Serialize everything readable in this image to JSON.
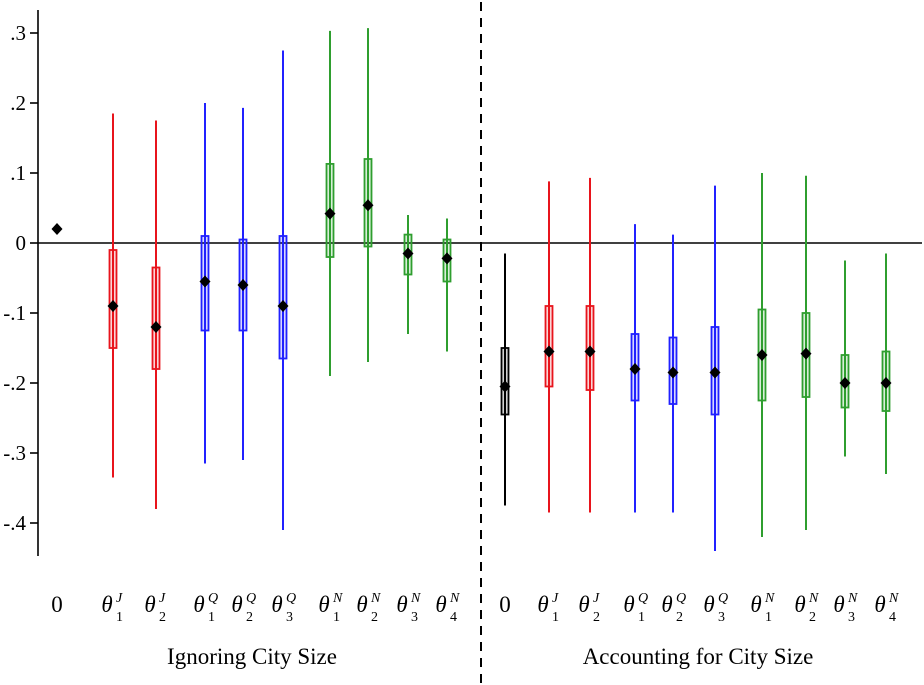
{
  "figure": {
    "background": "#ffffff",
    "divider_style": "dashed",
    "left_panel_title": "Ignoring City Size",
    "right_panel_title": "Accounting for City Size"
  },
  "chart_data": {
    "type": "scatter",
    "subtype": "coefficient-interval-plot",
    "title": "",
    "xlabel": "",
    "ylabel": "",
    "ylim": [
      -0.47,
      0.33
    ],
    "grid": false,
    "zero_line": 0,
    "yticks": {
      "labels": [
        ".3",
        ".2",
        ".1",
        "0",
        "-.1",
        "-.2",
        "-.3",
        "-.4"
      ],
      "values": [
        0.3,
        0.2,
        0.1,
        0,
        -0.1,
        -0.2,
        -0.3,
        -0.4
      ]
    },
    "colors": {
      "baseline": "#000000",
      "J": "#e8141c",
      "Q": "#2121ff",
      "N": "#2f9e2f"
    },
    "panels": [
      {
        "title": "Ignoring City Size",
        "points": [
          {
            "base": "0",
            "sub": "",
            "sup": "",
            "group": "baseline",
            "estimate": 0.02,
            "inner": null,
            "outer": null
          },
          {
            "base": "θ",
            "sub": "1",
            "sup": "J",
            "group": "J",
            "estimate": -0.09,
            "inner": [
              -0.15,
              -0.01
            ],
            "outer": [
              -0.335,
              0.185
            ]
          },
          {
            "base": "θ",
            "sub": "2",
            "sup": "J",
            "group": "J",
            "estimate": -0.12,
            "inner": [
              -0.18,
              -0.035
            ],
            "outer": [
              -0.38,
              0.175
            ]
          },
          {
            "base": "θ",
            "sub": "1",
            "sup": "Q",
            "group": "Q",
            "estimate": -0.055,
            "inner": [
              -0.125,
              0.01
            ],
            "outer": [
              -0.315,
              0.2
            ]
          },
          {
            "base": "θ",
            "sub": "2",
            "sup": "Q",
            "group": "Q",
            "estimate": -0.06,
            "inner": [
              -0.125,
              0.005
            ],
            "outer": [
              -0.31,
              0.193
            ]
          },
          {
            "base": "θ",
            "sub": "3",
            "sup": "Q",
            "group": "Q",
            "estimate": -0.09,
            "inner": [
              -0.165,
              0.01
            ],
            "outer": [
              -0.41,
              0.275
            ]
          },
          {
            "base": "θ",
            "sub": "1",
            "sup": "N",
            "group": "N",
            "estimate": 0.042,
            "inner": [
              -0.02,
              0.113
            ],
            "outer": [
              -0.19,
              0.303
            ]
          },
          {
            "base": "θ",
            "sub": "2",
            "sup": "N",
            "group": "N",
            "estimate": 0.054,
            "inner": [
              -0.005,
              0.12
            ],
            "outer": [
              -0.17,
              0.307
            ]
          },
          {
            "base": "θ",
            "sub": "3",
            "sup": "N",
            "group": "N",
            "estimate": -0.015,
            "inner": [
              -0.045,
              0.012
            ],
            "outer": [
              -0.13,
              0.04
            ]
          },
          {
            "base": "θ",
            "sub": "4",
            "sup": "N",
            "group": "N",
            "estimate": -0.022,
            "inner": [
              -0.055,
              0.005
            ],
            "outer": [
              -0.155,
              0.035
            ]
          }
        ]
      },
      {
        "title": "Accounting for City Size",
        "points": [
          {
            "base": "0",
            "sub": "",
            "sup": "",
            "group": "baseline",
            "estimate": -0.205,
            "inner": [
              -0.245,
              -0.15
            ],
            "outer": [
              -0.375,
              -0.015
            ]
          },
          {
            "base": "θ",
            "sub": "1",
            "sup": "J",
            "group": "J",
            "estimate": -0.155,
            "inner": [
              -0.205,
              -0.09
            ],
            "outer": [
              -0.385,
              0.088
            ]
          },
          {
            "base": "θ",
            "sub": "2",
            "sup": "J",
            "group": "J",
            "estimate": -0.155,
            "inner": [
              -0.21,
              -0.09
            ],
            "outer": [
              -0.385,
              0.093
            ]
          },
          {
            "base": "θ",
            "sub": "1",
            "sup": "Q",
            "group": "Q",
            "estimate": -0.18,
            "inner": [
              -0.225,
              -0.13
            ],
            "outer": [
              -0.385,
              0.027
            ]
          },
          {
            "base": "θ",
            "sub": "2",
            "sup": "Q",
            "group": "Q",
            "estimate": -0.185,
            "inner": [
              -0.23,
              -0.135
            ],
            "outer": [
              -0.385,
              0.012
            ]
          },
          {
            "base": "θ",
            "sub": "3",
            "sup": "Q",
            "group": "Q",
            "estimate": -0.185,
            "inner": [
              -0.245,
              -0.12
            ],
            "outer": [
              -0.44,
              0.082
            ]
          },
          {
            "base": "θ",
            "sub": "1",
            "sup": "N",
            "group": "N",
            "estimate": -0.16,
            "inner": [
              -0.225,
              -0.095
            ],
            "outer": [
              -0.42,
              0.1
            ]
          },
          {
            "base": "θ",
            "sub": "2",
            "sup": "N",
            "group": "N",
            "estimate": -0.158,
            "inner": [
              -0.22,
              -0.1
            ],
            "outer": [
              -0.41,
              0.096
            ]
          },
          {
            "base": "θ",
            "sub": "3",
            "sup": "N",
            "group": "N",
            "estimate": -0.2,
            "inner": [
              -0.235,
              -0.16
            ],
            "outer": [
              -0.305,
              -0.025
            ]
          },
          {
            "base": "θ",
            "sub": "4",
            "sup": "N",
            "group": "N",
            "estimate": -0.2,
            "inner": [
              -0.24,
              -0.155
            ],
            "outer": [
              -0.33,
              -0.015
            ]
          }
        ]
      }
    ]
  }
}
